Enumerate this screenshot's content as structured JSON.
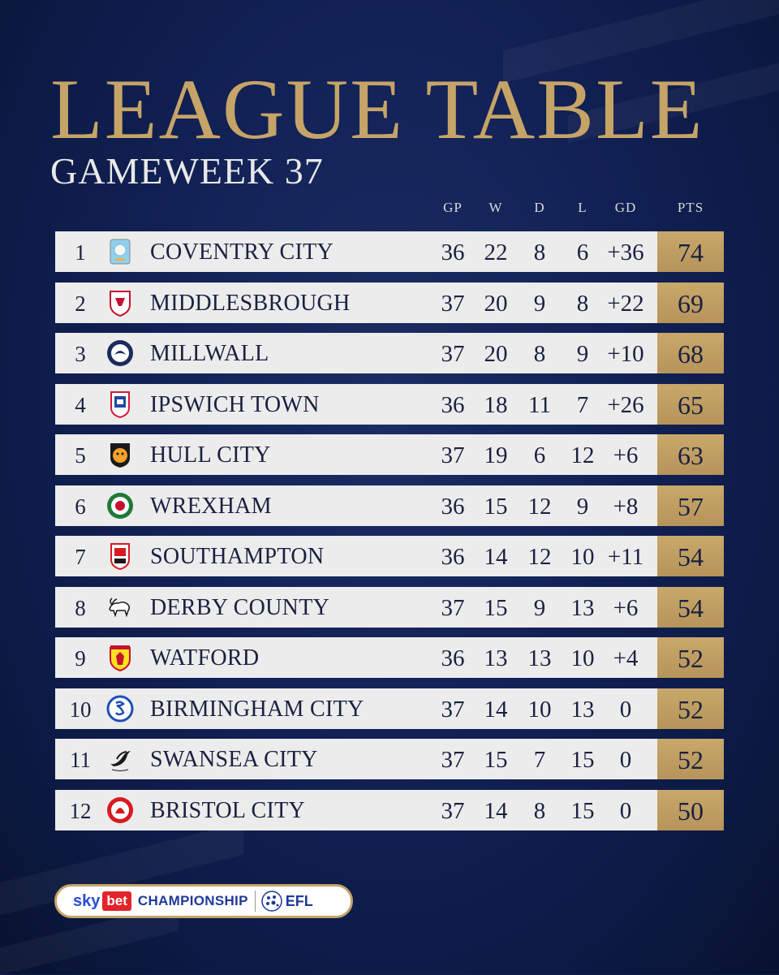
{
  "header": {
    "title": "LEAGUE TABLE",
    "subtitle": "GAMEWEEK 37"
  },
  "columns": {
    "gp": "GP",
    "w": "W",
    "d": "D",
    "l": "L",
    "gd": "GD",
    "pts": "PTS"
  },
  "rows": [
    {
      "pos": "1",
      "team": "COVENTRY CITY",
      "crest": "coventry-city-crest",
      "gp": "36",
      "w": "22",
      "d": "8",
      "l": "6",
      "gd": "+36",
      "pts": "74"
    },
    {
      "pos": "2",
      "team": "MIDDLESBROUGH",
      "crest": "middlesbrough-crest",
      "gp": "37",
      "w": "20",
      "d": "9",
      "l": "8",
      "gd": "+22",
      "pts": "69"
    },
    {
      "pos": "3",
      "team": "MILLWALL",
      "crest": "millwall-crest",
      "gp": "37",
      "w": "20",
      "d": "8",
      "l": "9",
      "gd": "+10",
      "pts": "68"
    },
    {
      "pos": "4",
      "team": "IPSWICH TOWN",
      "crest": "ipswich-town-crest",
      "gp": "36",
      "w": "18",
      "d": "11",
      "l": "7",
      "gd": "+26",
      "pts": "65"
    },
    {
      "pos": "5",
      "team": "HULL CITY",
      "crest": "hull-city-crest",
      "gp": "37",
      "w": "19",
      "d": "6",
      "l": "12",
      "gd": "+6",
      "pts": "63"
    },
    {
      "pos": "6",
      "team": "WREXHAM",
      "crest": "wrexham-crest",
      "gp": "36",
      "w": "15",
      "d": "12",
      "l": "9",
      "gd": "+8",
      "pts": "57"
    },
    {
      "pos": "7",
      "team": "SOUTHAMPTON",
      "crest": "southampton-crest",
      "gp": "36",
      "w": "14",
      "d": "12",
      "l": "10",
      "gd": "+11",
      "pts": "54"
    },
    {
      "pos": "8",
      "team": "DERBY COUNTY",
      "crest": "derby-county-crest",
      "gp": "37",
      "w": "15",
      "d": "9",
      "l": "13",
      "gd": "+6",
      "pts": "54"
    },
    {
      "pos": "9",
      "team": "WATFORD",
      "crest": "watford-crest",
      "gp": "36",
      "w": "13",
      "d": "13",
      "l": "10",
      "gd": "+4",
      "pts": "52"
    },
    {
      "pos": "10",
      "team": "BIRMINGHAM CITY",
      "crest": "birmingham-city-crest",
      "gp": "37",
      "w": "14",
      "d": "10",
      "l": "13",
      "gd": "0",
      "pts": "52"
    },
    {
      "pos": "11",
      "team": "SWANSEA CITY",
      "crest": "swansea-city-crest",
      "gp": "37",
      "w": "15",
      "d": "7",
      "l": "15",
      "gd": "0",
      "pts": "52"
    },
    {
      "pos": "12",
      "team": "BRISTOL CITY",
      "crest": "bristol-city-crest",
      "gp": "37",
      "w": "14",
      "d": "8",
      "l": "15",
      "gd": "0",
      "pts": "50"
    }
  ],
  "sponsor": {
    "sky": "sky",
    "bet": "bet",
    "competition": "CHAMPIONSHIP",
    "league": "EFL"
  },
  "colors": {
    "background": "#132257",
    "gold": "#c6a467",
    "row": "#ececec",
    "text": "#1a2140"
  }
}
